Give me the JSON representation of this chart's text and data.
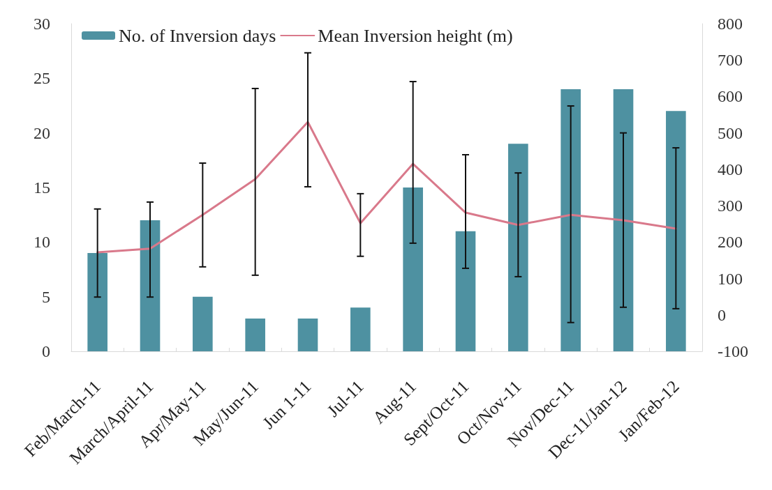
{
  "chart_data": {
    "type": "bar",
    "categories": [
      "Feb/March-11",
      "March/April-11",
      "Apr/May-11",
      "May/Jun-11",
      "Jun 1-11",
      "Jul-11",
      "Aug-11",
      "Sept/Oct-11",
      "Oct/Nov-11",
      "Nov/Dec-11",
      "Dec-11/Jan-12",
      "Jan/Feb-12"
    ],
    "series": [
      {
        "name": "No. of Inversion days",
        "color": "#4e91a1",
        "values": [
          9,
          12,
          5,
          3,
          3,
          4,
          15,
          11,
          19,
          24,
          24,
          22
        ]
      },
      {
        "name": "Mean Inversion height (m)",
        "type": "line",
        "axis": "y2",
        "color": "#d9798b",
        "values": [
          172,
          182,
          275,
          373,
          530,
          252,
          415,
          281,
          247,
          275,
          260,
          237
        ],
        "errors": [
          [
            49,
            291
          ],
          [
            49,
            310
          ],
          [
            132,
            417
          ],
          [
            109,
            622
          ],
          [
            352,
            720
          ],
          [
            161,
            333
          ],
          [
            197,
            641
          ],
          [
            128,
            440
          ],
          [
            105,
            390
          ],
          [
            -21,
            574
          ],
          [
            21,
            500
          ],
          [
            17,
            459
          ]
        ]
      }
    ],
    "ylim": [
      0,
      30
    ],
    "yticks": [
      0,
      5,
      10,
      15,
      20,
      25,
      30
    ],
    "y2lim": [
      -100,
      800
    ],
    "y2ticks": [
      -100,
      0,
      100,
      200,
      300,
      400,
      500,
      600,
      700,
      800
    ],
    "legend": "top",
    "marker": "none",
    "line_style": "solid"
  }
}
